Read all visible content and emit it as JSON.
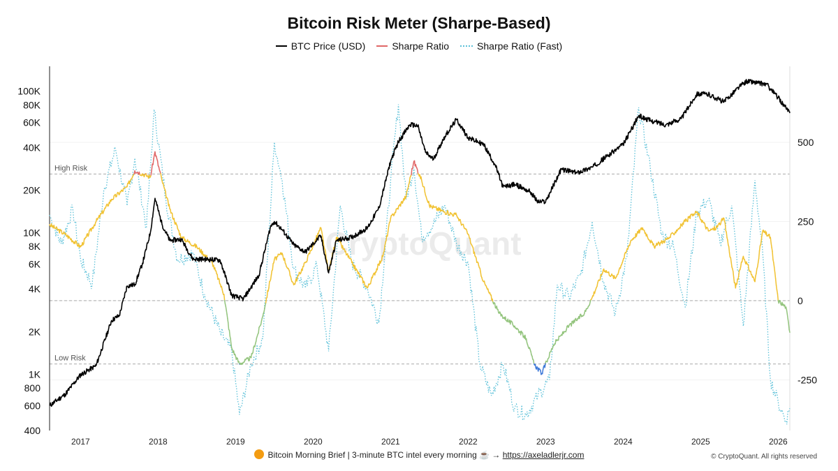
{
  "chart_data": {
    "type": "line",
    "title": "Bitcoin Risk Meter (Sharpe-Based)",
    "legend": [
      "BTC Price (USD)",
      "Sharpe Ratio",
      "Sharpe Ratio (Fast)"
    ],
    "legend_position": "top-center",
    "left_axis": {
      "scale": "log",
      "range": [
        400,
        150000
      ],
      "ticks": [
        400,
        600,
        800,
        1000,
        2000,
        4000,
        6000,
        8000,
        10000,
        20000,
        40000,
        60000,
        80000,
        100000
      ],
      "tick_labels": [
        "400",
        "600",
        "800",
        "1K",
        "2K",
        "4K",
        "6K",
        "8K",
        "10K",
        "20K",
        "40K",
        "60K",
        "80K",
        "100K"
      ]
    },
    "right_axis": {
      "scale": "linear",
      "range": [
        -410,
        740
      ],
      "ticks": [
        -250,
        0,
        250,
        500
      ],
      "tick_labels": [
        "-250",
        "0",
        "250",
        "500"
      ]
    },
    "x_axis": {
      "range": [
        2016.6,
        2026.15
      ],
      "ticks": [
        2017,
        2018,
        2019,
        2020,
        2021,
        2022,
        2023,
        2024,
        2025,
        2026
      ],
      "tick_labels": [
        "2017",
        "2018",
        "2019",
        "2020",
        "2021",
        "2022",
        "2023",
        "2024",
        "2025",
        "2026"
      ]
    },
    "reference_lines": [
      {
        "value": 400,
        "label": "High Risk"
      },
      {
        "value": 0,
        "label": ""
      },
      {
        "value": -200,
        "label": "Low Risk"
      }
    ],
    "grid": "horizontal",
    "watermark": "CryptoQuant",
    "colors": {
      "price": "#000000",
      "sharpe_high": "#e06666",
      "sharpe_mid": "#f1c232",
      "sharpe_low": "#93c47d",
      "sharpe_very_low": "#3c78d8",
      "sharpe_fast": "#5bc0d8"
    },
    "series": [
      {
        "name": "BTC Price (USD)",
        "axis": "left",
        "x": [
          2016.6,
          2016.8,
          2017.0,
          2017.2,
          2017.4,
          2017.5,
          2017.6,
          2017.7,
          2017.8,
          2017.9,
          2017.96,
          2018.05,
          2018.15,
          2018.3,
          2018.45,
          2018.6,
          2018.8,
          2018.95,
          2019.1,
          2019.3,
          2019.45,
          2019.5,
          2019.6,
          2019.75,
          2019.9,
          2020.1,
          2020.2,
          2020.3,
          2020.5,
          2020.7,
          2020.85,
          2021.0,
          2021.1,
          2021.25,
          2021.35,
          2021.45,
          2021.55,
          2021.7,
          2021.85,
          2022.0,
          2022.2,
          2022.35,
          2022.45,
          2022.6,
          2022.8,
          2022.9,
          2023.0,
          2023.2,
          2023.4,
          2023.6,
          2023.8,
          2024.0,
          2024.2,
          2024.35,
          2024.55,
          2024.75,
          2024.95,
          2025.1,
          2025.3,
          2025.5,
          2025.6,
          2025.75,
          2025.85,
          2026.0,
          2026.1,
          2026.15
        ],
        "values": [
          600,
          720,
          990,
          1150,
          2400,
          2600,
          4200,
          4300,
          6100,
          10000,
          17500,
          11500,
          8800,
          9000,
          6500,
          6500,
          6400,
          3600,
          3400,
          5000,
          11000,
          12000,
          10500,
          8200,
          7300,
          9500,
          5200,
          8800,
          9300,
          10800,
          15000,
          32000,
          44000,
          58000,
          57000,
          37000,
          33000,
          48000,
          63000,
          47000,
          42000,
          30000,
          21000,
          22000,
          19500,
          16500,
          16600,
          28000,
          26500,
          29000,
          35000,
          42000,
          67000,
          62000,
          58000,
          64000,
          96000,
          95000,
          84000,
          108000,
          118000,
          114000,
          112000,
          90000,
          76000,
          70000
        ]
      },
      {
        "name": "Sharpe Ratio",
        "axis": "right",
        "x": [
          2016.6,
          2016.8,
          2017.0,
          2017.2,
          2017.4,
          2017.6,
          2017.7,
          2017.9,
          2017.96,
          2018.05,
          2018.15,
          2018.3,
          2018.5,
          2018.7,
          2018.85,
          2018.95,
          2019.05,
          2019.2,
          2019.35,
          2019.5,
          2019.6,
          2019.75,
          2019.9,
          2020.1,
          2020.2,
          2020.3,
          2020.5,
          2020.7,
          2020.9,
          2021.0,
          2021.2,
          2021.3,
          2021.4,
          2021.5,
          2021.7,
          2021.85,
          2022.0,
          2022.2,
          2022.4,
          2022.6,
          2022.75,
          2022.85,
          2022.95,
          2023.1,
          2023.3,
          2023.5,
          2023.6,
          2023.75,
          2023.9,
          2024.1,
          2024.25,
          2024.4,
          2024.6,
          2024.8,
          2024.95,
          2025.1,
          2025.2,
          2025.3,
          2025.45,
          2025.55,
          2025.7,
          2025.8,
          2025.9,
          2026.0,
          2026.1,
          2026.15
        ],
        "values": [
          240,
          210,
          170,
          250,
          320,
          360,
          410,
          390,
          470,
          380,
          290,
          200,
          170,
          120,
          20,
          -150,
          -200,
          -180,
          -50,
          130,
          150,
          50,
          120,
          230,
          90,
          200,
          120,
          40,
          140,
          260,
          330,
          440,
          380,
          300,
          280,
          270,
          210,
          60,
          -40,
          -80,
          -120,
          -200,
          -230,
          -140,
          -80,
          -40,
          10,
          100,
          70,
          190,
          230,
          170,
          200,
          250,
          280,
          220,
          230,
          260,
          40,
          140,
          60,
          220,
          200,
          0,
          -20,
          -100
        ]
      },
      {
        "name": "Sharpe Ratio (Fast)",
        "axis": "right",
        "x": [
          2016.6,
          2016.75,
          2016.9,
          2017.0,
          2017.15,
          2017.3,
          2017.45,
          2017.6,
          2017.7,
          2017.85,
          2017.95,
          2018.1,
          2018.25,
          2018.45,
          2018.6,
          2018.8,
          2018.95,
          2019.05,
          2019.2,
          2019.35,
          2019.5,
          2019.6,
          2019.75,
          2019.9,
          2020.05,
          2020.2,
          2020.35,
          2020.5,
          2020.7,
          2020.85,
          2021.0,
          2021.1,
          2021.2,
          2021.3,
          2021.4,
          2021.55,
          2021.7,
          2021.85,
          2022.0,
          2022.15,
          2022.3,
          2022.45,
          2022.6,
          2022.75,
          2022.9,
          2023.05,
          2023.15,
          2023.3,
          2023.45,
          2023.6,
          2023.75,
          2023.9,
          2024.05,
          2024.2,
          2024.35,
          2024.5,
          2024.65,
          2024.8,
          2024.95,
          2025.1,
          2025.25,
          2025.4,
          2025.55,
          2025.7,
          2025.8,
          2025.9,
          2026.0,
          2026.1,
          2026.15
        ],
        "values": [
          270,
          180,
          290,
          130,
          50,
          350,
          480,
          300,
          450,
          230,
          600,
          320,
          130,
          150,
          20,
          -100,
          -160,
          -360,
          -200,
          -120,
          500,
          380,
          100,
          40,
          110,
          -160,
          300,
          120,
          40,
          -70,
          380,
          620,
          320,
          420,
          200,
          240,
          300,
          180,
          120,
          -200,
          -300,
          -200,
          -340,
          -360,
          -300,
          -250,
          50,
          10,
          80,
          250,
          60,
          -40,
          140,
          610,
          420,
          210,
          170,
          -20,
          280,
          320,
          180,
          300,
          -80,
          380,
          150,
          -250,
          -320,
          -380,
          -340
        ]
      }
    ]
  },
  "footer": {
    "text": "Bitcoin Morning Brief | 3-minute BTC intel every morning ☕ →",
    "link": "https://axeladlerjr.com"
  },
  "copyright": "© CryptoQuant. All rights reserved"
}
